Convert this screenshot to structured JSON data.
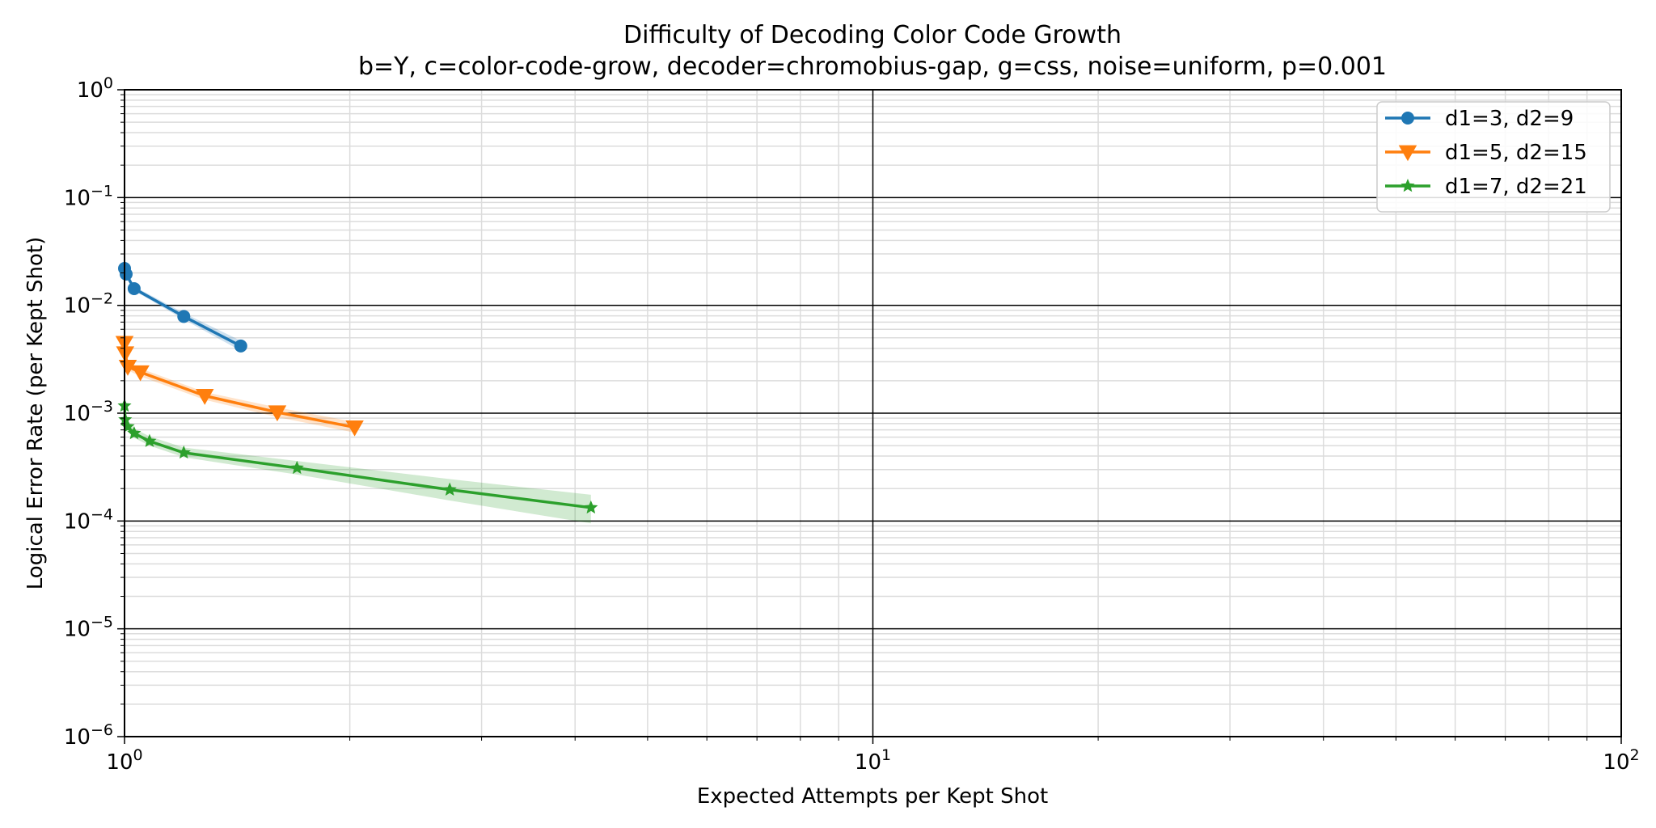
{
  "chart_data": {
    "type": "line",
    "title": "Difficulty of Decoding Color Code Growth",
    "subtitle": "b=Y, c=color-code-grow, decoder=chromobius-gap, g=css, noise=uniform, p=0.001",
    "xlabel": "Expected Attempts per Kept Shot",
    "ylabel": "Logical Error Rate (per Kept Shot)",
    "xscale": "log",
    "yscale": "log",
    "xlim": [
      1,
      100
    ],
    "ylim": [
      1e-06,
      1
    ],
    "x_tick_labels": [
      {
        "base": "10",
        "exp": "0",
        "value": 1
      },
      {
        "base": "10",
        "exp": "1",
        "value": 10
      },
      {
        "base": "10",
        "exp": "2",
        "value": 100
      }
    ],
    "y_tick_labels": [
      {
        "base": "10",
        "exp": "0",
        "value": 1
      },
      {
        "base": "10",
        "exp": "−1",
        "value": 0.1
      },
      {
        "base": "10",
        "exp": "−2",
        "value": 0.01
      },
      {
        "base": "10",
        "exp": "−3",
        "value": 0.001
      },
      {
        "base": "10",
        "exp": "−4",
        "value": 0.0001
      },
      {
        "base": "10",
        "exp": "−5",
        "value": 1e-05
      },
      {
        "base": "10",
        "exp": "−6",
        "value": 1e-06
      }
    ],
    "grid": true,
    "legend_position": "top-right",
    "series": [
      {
        "name": "d1=3, d2=9",
        "color": "#1f77b4",
        "marker": "circle",
        "points": [
          {
            "x": 1.0,
            "y": 0.022
          },
          {
            "x": 1.005,
            "y": 0.0195
          },
          {
            "x": 1.03,
            "y": 0.0143
          },
          {
            "x": 1.2,
            "y": 0.0079
          },
          {
            "x": 1.43,
            "y": 0.0042
          }
        ],
        "band": {
          "x": [
            1.0,
            1.005,
            1.03,
            1.2,
            1.43
          ],
          "lower": [
            0.0205,
            0.0185,
            0.0137,
            0.0074,
            0.0038
          ],
          "upper": [
            0.0235,
            0.0206,
            0.015,
            0.0085,
            0.0047
          ]
        }
      },
      {
        "name": "d1=5, d2=15",
        "color": "#ff7f0e",
        "marker": "triangle-down",
        "points": [
          {
            "x": 1.0,
            "y": 0.0045
          },
          {
            "x": 1.002,
            "y": 0.0036
          },
          {
            "x": 1.01,
            "y": 0.0027
          },
          {
            "x": 1.05,
            "y": 0.0024
          },
          {
            "x": 1.28,
            "y": 0.00145
          },
          {
            "x": 1.6,
            "y": 0.00102
          },
          {
            "x": 2.03,
            "y": 0.00074
          }
        ],
        "band": {
          "x": [
            1.0,
            1.002,
            1.01,
            1.05,
            1.28,
            1.6,
            2.03
          ],
          "lower": [
            0.0041,
            0.0033,
            0.0025,
            0.0022,
            0.00133,
            0.00092,
            0.00066
          ],
          "upper": [
            0.0049,
            0.0039,
            0.0029,
            0.0026,
            0.00157,
            0.00113,
            0.00083
          ]
        }
      },
      {
        "name": "d1=7, d2=21",
        "color": "#2ca02c",
        "marker": "star",
        "points": [
          {
            "x": 1.0,
            "y": 0.00117
          },
          {
            "x": 1.002,
            "y": 0.00087
          },
          {
            "x": 1.01,
            "y": 0.00075
          },
          {
            "x": 1.03,
            "y": 0.00065
          },
          {
            "x": 1.08,
            "y": 0.00055
          },
          {
            "x": 1.2,
            "y": 0.00043
          },
          {
            "x": 1.7,
            "y": 0.00031
          },
          {
            "x": 2.72,
            "y": 0.000195
          },
          {
            "x": 4.2,
            "y": 0.000133
          }
        ],
        "band": {
          "x": [
            1.0,
            1.002,
            1.01,
            1.03,
            1.08,
            1.2,
            1.7,
            2.72,
            4.2
          ],
          "lower": [
            0.00105,
            0.00079,
            0.00068,
            0.00059,
            0.0005,
            0.00039,
            0.00027,
            0.000155,
            9.5e-05
          ],
          "upper": [
            0.0013,
            0.00096,
            0.00083,
            0.00072,
            0.00061,
            0.00048,
            0.00036,
            0.000245,
            0.000175
          ]
        }
      }
    ]
  }
}
